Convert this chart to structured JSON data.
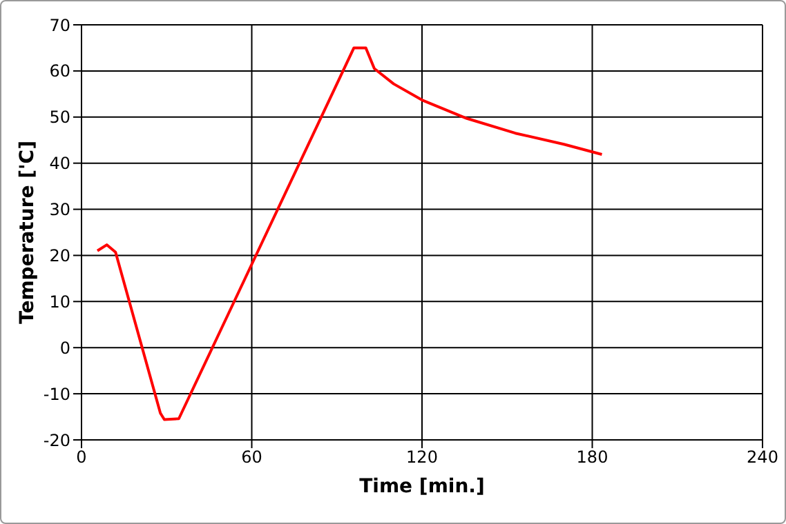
{
  "chart_data": {
    "type": "line",
    "xlabel": "Time [min.]",
    "ylabel": "Temperature ['C]",
    "x": [
      5.6,
      8.9,
      12.0,
      27.8,
      29.2,
      34.3,
      53.5,
      96.0,
      100.2,
      103.2,
      110,
      120,
      135.8,
      152.9,
      170,
      183.4
    ],
    "series": [
      {
        "color": "#ff0000",
        "values": [
          21.0,
          22.3,
          20.7,
          -14.2,
          -15.6,
          -15.4,
          9.6,
          65.0,
          65.0,
          60.5,
          57.2,
          53.7,
          49.7,
          46.5,
          44.1,
          41.9
        ]
      }
    ],
    "xlim": [
      0,
      240
    ],
    "xticks": [
      0,
      60,
      120,
      180,
      240
    ],
    "ylim": [
      -20,
      70
    ],
    "yticks": [
      -20,
      -10,
      0,
      10,
      20,
      30,
      40,
      50,
      60,
      70
    ],
    "grid": true,
    "legend": false,
    "marker": "none",
    "line_style": "solid"
  }
}
